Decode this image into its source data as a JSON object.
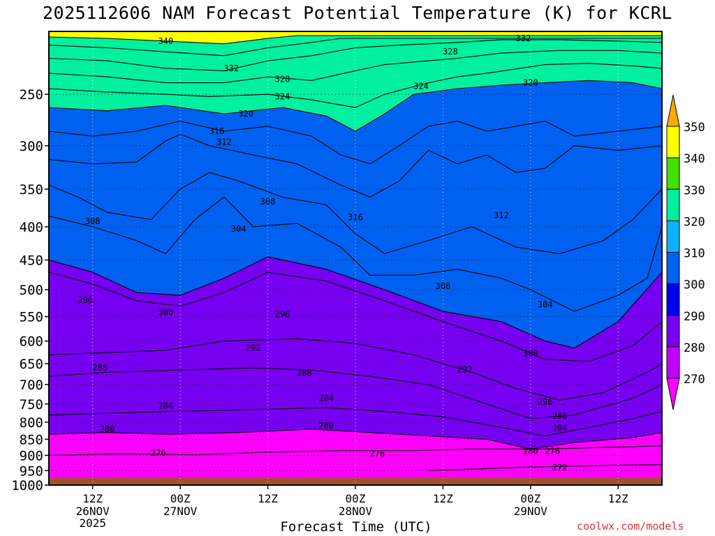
{
  "chart_data": {
    "type": "heatmap",
    "title": "2025112606 NAM Forecast Potential Temperature (K) for KCRL",
    "xlabel": "Forecast Time (UTC)",
    "ylabel": "",
    "credit": "coolwx.com/models",
    "y_axis": {
      "scale": "log",
      "range": [
        1000,
        200
      ],
      "ticks": [
        250,
        300,
        350,
        400,
        450,
        500,
        550,
        600,
        650,
        700,
        750,
        800,
        850,
        900,
        950,
        1000
      ],
      "units": "hPa"
    },
    "x_axis": {
      "range_hours": [
        0,
        84
      ],
      "ticks": [
        {
          "hour": 6,
          "label": "12Z",
          "sub1": "26NOV",
          "sub2": "2025"
        },
        {
          "hour": 18,
          "label": "00Z",
          "sub1": "27NOV",
          "sub2": ""
        },
        {
          "hour": 30,
          "label": "12Z",
          "sub1": "",
          "sub2": ""
        },
        {
          "hour": 42,
          "label": "00Z",
          "sub1": "28NOV",
          "sub2": ""
        },
        {
          "hour": 54,
          "label": "12Z",
          "sub1": "",
          "sub2": ""
        },
        {
          "hour": 66,
          "label": "00Z",
          "sub1": "29NOV",
          "sub2": ""
        },
        {
          "hour": 78,
          "label": "12Z",
          "sub1": "",
          "sub2": ""
        }
      ]
    },
    "colorbar": {
      "levels": [
        270,
        280,
        290,
        300,
        310,
        320,
        330,
        340,
        350
      ],
      "colors": [
        "#ff00ff",
        "#c000ff",
        "#7800f0",
        "#0000f0",
        "#0060f0",
        "#10b0ff",
        "#00f0a0",
        "#40e000",
        "#ffff00",
        "#ffaa00"
      ]
    },
    "contours": [
      {
        "value": 272,
        "points": [
          [
            52,
            950
          ],
          [
            58,
            945
          ],
          [
            66,
            938
          ],
          [
            72,
            935
          ],
          [
            78,
            932
          ],
          [
            84,
            930
          ]
        ]
      },
      {
        "value": 276,
        "points": [
          [
            0,
            900
          ],
          [
            10,
            895
          ],
          [
            20,
            898
          ],
          [
            30,
            890
          ],
          [
            40,
            885
          ],
          [
            50,
            885
          ],
          [
            58,
            880
          ],
          [
            62,
            880
          ],
          [
            68,
            880
          ],
          [
            76,
            875
          ],
          [
            84,
            870
          ]
        ]
      },
      {
        "value": 280,
        "points": [
          [
            0,
            835
          ],
          [
            8,
            830
          ],
          [
            16,
            835
          ],
          [
            26,
            830
          ],
          [
            36,
            820
          ],
          [
            44,
            830
          ],
          [
            52,
            840
          ],
          [
            60,
            850
          ],
          [
            66,
            880
          ],
          [
            72,
            860
          ],
          [
            80,
            845
          ],
          [
            84,
            830
          ]
        ]
      },
      {
        "value": 284,
        "points": [
          [
            0,
            780
          ],
          [
            8,
            775
          ],
          [
            18,
            770
          ],
          [
            28,
            765
          ],
          [
            38,
            760
          ],
          [
            46,
            770
          ],
          [
            54,
            785
          ],
          [
            62,
            815
          ],
          [
            68,
            840
          ],
          [
            74,
            815
          ],
          [
            80,
            790
          ],
          [
            84,
            770
          ]
        ]
      },
      {
        "value": 288,
        "points": [
          [
            0,
            680
          ],
          [
            8,
            670
          ],
          [
            18,
            665
          ],
          [
            28,
            660
          ],
          [
            36,
            665
          ],
          [
            44,
            680
          ],
          [
            52,
            700
          ],
          [
            60,
            750
          ],
          [
            66,
            790
          ],
          [
            72,
            780
          ],
          [
            80,
            735
          ],
          [
            84,
            700
          ]
        ]
      },
      {
        "value": 292,
        "points": [
          [
            0,
            630
          ],
          [
            8,
            625
          ],
          [
            16,
            620
          ],
          [
            24,
            600
          ],
          [
            34,
            595
          ],
          [
            42,
            605
          ],
          [
            50,
            630
          ],
          [
            58,
            670
          ],
          [
            64,
            710
          ],
          [
            70,
            740
          ],
          [
            76,
            720
          ],
          [
            82,
            670
          ],
          [
            84,
            650
          ]
        ]
      },
      {
        "value": 296,
        "points": [
          [
            0,
            470
          ],
          [
            6,
            490
          ],
          [
            12,
            520
          ],
          [
            18,
            530
          ],
          [
            24,
            505
          ],
          [
            30,
            470
          ],
          [
            38,
            485
          ],
          [
            46,
            520
          ],
          [
            54,
            560
          ],
          [
            62,
            600
          ],
          [
            68,
            640
          ],
          [
            74,
            645
          ],
          [
            80,
            610
          ],
          [
            84,
            560
          ]
        ]
      },
      {
        "value": 300,
        "points": [
          [
            0,
            450
          ],
          [
            6,
            470
          ],
          [
            12,
            505
          ],
          [
            18,
            510
          ],
          [
            24,
            480
          ],
          [
            30,
            445
          ],
          [
            38,
            465
          ],
          [
            46,
            500
          ],
          [
            54,
            540
          ],
          [
            62,
            560
          ],
          [
            68,
            600
          ],
          [
            72,
            615
          ],
          [
            78,
            560
          ],
          [
            84,
            470
          ]
        ]
      },
      {
        "value": 304,
        "points": [
          [
            0,
            385
          ],
          [
            6,
            400
          ],
          [
            12,
            420
          ],
          [
            16,
            440
          ],
          [
            20,
            390
          ],
          [
            24,
            360
          ],
          [
            28,
            400
          ],
          [
            34,
            395
          ],
          [
            40,
            430
          ],
          [
            44,
            475
          ],
          [
            50,
            475
          ],
          [
            56,
            465
          ],
          [
            62,
            480
          ],
          [
            66,
            500
          ],
          [
            72,
            540
          ],
          [
            78,
            510
          ],
          [
            82,
            480
          ],
          [
            84,
            400
          ]
        ]
      },
      {
        "value": 308,
        "points": [
          [
            0,
            345
          ],
          [
            4,
            360
          ],
          [
            8,
            380
          ],
          [
            14,
            390
          ],
          [
            18,
            350
          ],
          [
            22,
            330
          ],
          [
            26,
            340
          ],
          [
            32,
            360
          ],
          [
            38,
            370
          ],
          [
            42,
            410
          ],
          [
            46,
            440
          ],
          [
            52,
            420
          ],
          [
            58,
            400
          ],
          [
            64,
            430
          ],
          [
            70,
            440
          ],
          [
            76,
            420
          ],
          [
            80,
            390
          ],
          [
            84,
            350
          ]
        ]
      },
      {
        "value": 312,
        "points": [
          [
            0,
            315
          ],
          [
            6,
            320
          ],
          [
            12,
            318
          ],
          [
            16,
            295
          ],
          [
            18,
            288
          ],
          [
            22,
            300
          ],
          [
            28,
            310
          ],
          [
            34,
            320
          ],
          [
            40,
            345
          ],
          [
            44,
            360
          ],
          [
            48,
            340
          ],
          [
            52,
            305
          ],
          [
            56,
            320
          ],
          [
            60,
            310
          ],
          [
            64,
            330
          ],
          [
            68,
            325
          ],
          [
            72,
            300
          ],
          [
            78,
            305
          ],
          [
            84,
            300
          ]
        ]
      },
      {
        "value": 316,
        "points": [
          [
            0,
            285
          ],
          [
            6,
            290
          ],
          [
            12,
            285
          ],
          [
            18,
            275
          ],
          [
            24,
            285
          ],
          [
            30,
            280
          ],
          [
            36,
            290
          ],
          [
            40,
            310
          ],
          [
            44,
            320
          ],
          [
            48,
            300
          ],
          [
            52,
            280
          ],
          [
            56,
            275
          ],
          [
            60,
            285
          ],
          [
            64,
            280
          ],
          [
            68,
            275
          ],
          [
            72,
            290
          ],
          [
            78,
            285
          ],
          [
            84,
            280
          ]
        ]
      },
      {
        "value": 320,
        "points": [
          [
            0,
            262
          ],
          [
            8,
            265
          ],
          [
            16,
            260
          ],
          [
            24,
            268
          ],
          [
            32,
            262
          ],
          [
            38,
            270
          ],
          [
            42,
            285
          ],
          [
            46,
            268
          ],
          [
            50,
            250
          ],
          [
            56,
            245
          ],
          [
            62,
            242
          ],
          [
            68,
            240
          ],
          [
            74,
            238
          ],
          [
            80,
            240
          ],
          [
            84,
            245
          ]
        ]
      },
      {
        "value": 324,
        "points": [
          [
            0,
            245
          ],
          [
            8,
            248
          ],
          [
            16,
            250
          ],
          [
            22,
            252
          ],
          [
            30,
            250
          ],
          [
            36,
            255
          ],
          [
            42,
            262
          ],
          [
            46,
            250
          ],
          [
            52,
            240
          ],
          [
            56,
            235
          ],
          [
            60,
            232
          ],
          [
            68,
            225
          ],
          [
            74,
            224
          ],
          [
            80,
            226
          ],
          [
            84,
            228
          ]
        ]
      },
      {
        "value": 328,
        "points": [
          [
            0,
            232
          ],
          [
            8,
            235
          ],
          [
            16,
            240
          ],
          [
            24,
            240
          ],
          [
            30,
            235
          ],
          [
            36,
            238
          ],
          [
            42,
            230
          ],
          [
            46,
            225
          ],
          [
            52,
            222
          ],
          [
            56,
            220
          ],
          [
            62,
            216
          ],
          [
            70,
            214
          ],
          [
            78,
            214
          ],
          [
            84,
            216
          ]
        ]
      },
      {
        "value": 332,
        "points": [
          [
            0,
            220
          ],
          [
            8,
            222
          ],
          [
            16,
            228
          ],
          [
            24,
            230
          ],
          [
            30,
            222
          ],
          [
            36,
            218
          ],
          [
            42,
            212
          ],
          [
            48,
            210
          ],
          [
            56,
            208
          ],
          [
            62,
            206
          ],
          [
            70,
            206
          ],
          [
            78,
            207
          ],
          [
            84,
            208
          ]
        ]
      },
      {
        "value": 336,
        "points": [
          [
            0,
            210
          ],
          [
            8,
            212
          ],
          [
            16,
            215
          ],
          [
            24,
            218
          ],
          [
            30,
            212
          ],
          [
            36,
            208
          ],
          [
            40,
            205
          ],
          [
            84,
            205
          ]
        ]
      },
      {
        "value": 340,
        "points": [
          [
            0,
            204
          ],
          [
            8,
            205
          ],
          [
            16,
            207
          ],
          [
            24,
            209
          ],
          [
            30,
            205
          ],
          [
            34,
            203
          ],
          [
            84,
            203
          ]
        ]
      }
    ],
    "contour_labels": [
      {
        "text": "340",
        "hour": 16,
        "p": 207
      },
      {
        "text": "332",
        "hour": 25,
        "p": 228
      },
      {
        "text": "328",
        "hour": 32,
        "p": 237
      },
      {
        "text": "324",
        "hour": 32,
        "p": 252
      },
      {
        "text": "320",
        "hour": 27,
        "p": 268
      },
      {
        "text": "316",
        "hour": 23,
        "p": 285
      },
      {
        "text": "312",
        "hour": 24,
        "p": 296
      },
      {
        "text": "332",
        "hour": 65,
        "p": 205
      },
      {
        "text": "328",
        "hour": 55,
        "p": 215
      },
      {
        "text": "324",
        "hour": 51,
        "p": 243
      },
      {
        "text": "320",
        "hour": 66,
        "p": 240
      },
      {
        "text": "308",
        "hour": 6,
        "p": 392
      },
      {
        "text": "304",
        "hour": 26,
        "p": 403
      },
      {
        "text": "308",
        "hour": 30,
        "p": 366
      },
      {
        "text": "316",
        "hour": 42,
        "p": 387
      },
      {
        "text": "312",
        "hour": 62,
        "p": 384
      },
      {
        "text": "308",
        "hour": 54,
        "p": 494
      },
      {
        "text": "304",
        "hour": 68,
        "p": 527
      },
      {
        "text": "296",
        "hour": 5,
        "p": 519
      },
      {
        "text": "300",
        "hour": 16,
        "p": 542
      },
      {
        "text": "296",
        "hour": 32,
        "p": 546
      },
      {
        "text": "292",
        "hour": 28,
        "p": 615
      },
      {
        "text": "300",
        "hour": 66,
        "p": 627
      },
      {
        "text": "292",
        "hour": 57,
        "p": 664
      },
      {
        "text": "288",
        "hour": 7,
        "p": 660
      },
      {
        "text": "288",
        "hour": 35,
        "p": 672
      },
      {
        "text": "284",
        "hour": 16,
        "p": 755
      },
      {
        "text": "284",
        "hour": 38,
        "p": 735
      },
      {
        "text": "296",
        "hour": 68,
        "p": 745
      },
      {
        "text": "288",
        "hour": 70,
        "p": 783
      },
      {
        "text": "284",
        "hour": 70,
        "p": 817
      },
      {
        "text": "280",
        "hour": 8,
        "p": 820
      },
      {
        "text": "280",
        "hour": 38,
        "p": 810
      },
      {
        "text": "276",
        "hour": 15,
        "p": 892
      },
      {
        "text": "276",
        "hour": 45,
        "p": 895
      },
      {
        "text": "280",
        "hour": 66,
        "p": 887
      },
      {
        "text": "276",
        "hour": 69,
        "p": 887
      },
      {
        "text": "272",
        "hour": 70,
        "p": 940
      }
    ],
    "surface_pressure": 975,
    "grid": true
  }
}
